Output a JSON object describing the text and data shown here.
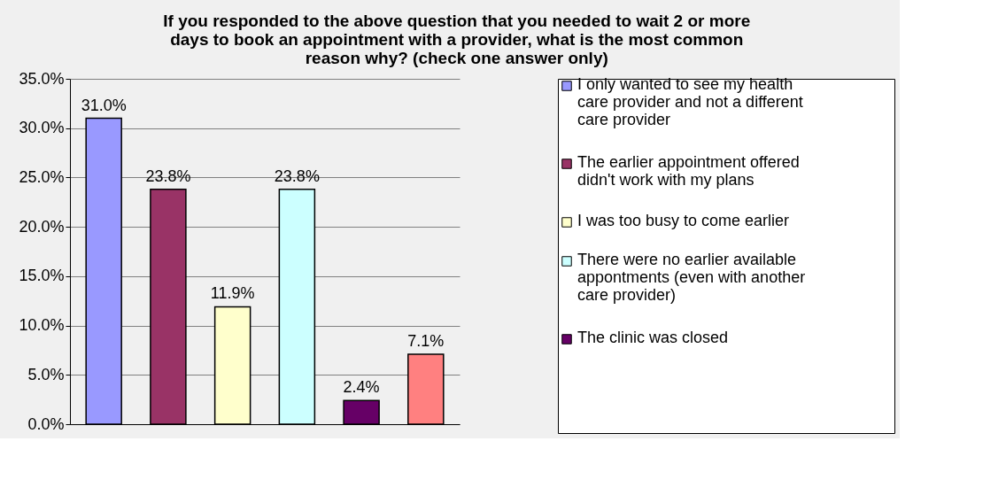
{
  "chart_data": {
    "type": "bar",
    "title": "If you responded to the above question that you needed to wait 2 or more days to book an appointment with a provider, what is the most common reason why? (check one answer only)",
    "categories": [
      null,
      null,
      null,
      null,
      null,
      null
    ],
    "series": [
      {
        "name": "I only wanted to see my health care provider and not a different care provider",
        "color": "#9999ff",
        "values": [
          31.0,
          null,
          null,
          null,
          null,
          null
        ],
        "value_labels": [
          "31.0%",
          null,
          null,
          null,
          null,
          null
        ]
      },
      {
        "name": "The earlier appointment offered didn't work with my plans",
        "color": "#993366",
        "values": [
          null,
          23.8,
          null,
          null,
          null,
          null
        ],
        "value_labels": [
          null,
          "23.8%",
          null,
          null,
          null,
          null
        ]
      },
      {
        "name": "I was too busy to come earlier",
        "color": "#ffffcc",
        "values": [
          null,
          null,
          11.9,
          null,
          null,
          null
        ],
        "value_labels": [
          null,
          null,
          "11.9%",
          null,
          null,
          null
        ]
      },
      {
        "name": "There were no earlier available appontments (even with another care provider)",
        "color": "#ccffff",
        "values": [
          null,
          null,
          null,
          23.8,
          null,
          null
        ],
        "value_labels": [
          null,
          null,
          null,
          "23.8%",
          null,
          null
        ]
      },
      {
        "name": "The clinic was closed",
        "color": "#660066",
        "values": [
          null,
          null,
          null,
          null,
          2.4,
          null
        ],
        "value_labels": [
          null,
          null,
          null,
          null,
          "2.4%",
          null
        ]
      },
      {
        "color": "#ff8080",
        "values": [
          null,
          null,
          null,
          null,
          null,
          7.1
        ],
        "value_labels": [
          null,
          null,
          null,
          null,
          null,
          "7.1%"
        ]
      }
    ],
    "ylim": [
      0,
      35
    ],
    "yticks": [
      {
        "value": 0,
        "label": "0.0%"
      },
      {
        "value": 5,
        "label": "5.0%"
      },
      {
        "value": 10,
        "label": "10.0%"
      },
      {
        "value": 15,
        "label": "15.0%"
      },
      {
        "value": 20,
        "label": "20.0%"
      },
      {
        "value": 25,
        "label": "25.0%"
      },
      {
        "value": 30,
        "label": "30.0%"
      },
      {
        "value": 35,
        "label": "35.0%"
      }
    ],
    "grid": "y",
    "legend": "right"
  }
}
